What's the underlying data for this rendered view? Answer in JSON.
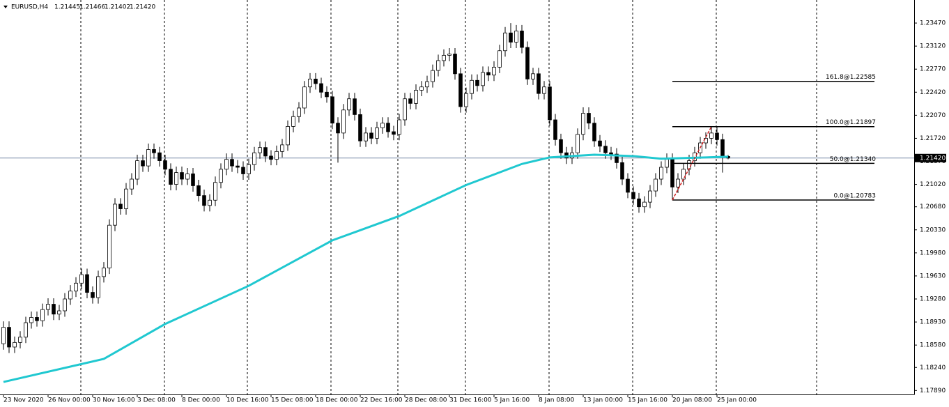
{
  "chart_data": {
    "type": "candlestick",
    "symbol": "EURUSD,H4",
    "header_values": [
      "1.21445",
      "1.21466",
      "1.21402",
      "1.21420"
    ],
    "open": [
      1.186,
      1.1885,
      1.1855,
      1.1862,
      1.187,
      1.1892,
      1.19,
      1.1895,
      1.1912,
      1.192,
      1.1905,
      1.191,
      1.1928,
      1.194,
      1.1952,
      1.1965,
      1.1938,
      1.193,
      1.1962,
      1.1975,
      1.204,
      1.2072,
      1.2065,
      1.2095,
      1.211,
      1.2138,
      1.213,
      1.2155,
      1.215,
      1.2138,
      1.2125,
      1.2102,
      1.212,
      1.211,
      1.2118,
      1.21,
      1.2085,
      1.207,
      1.2078,
      1.2105,
      1.2125,
      1.214,
      1.213,
      1.2128,
      1.2118,
      1.2132,
      1.215,
      1.2158,
      1.2145,
      1.214,
      1.2152,
      1.2162,
      1.219,
      1.2205,
      1.2218,
      1.225,
      1.2262,
      1.2255,
      1.2242,
      1.2235,
      1.2195,
      1.218,
      1.2215,
      1.2232,
      1.2208,
      1.2168,
      1.218,
      1.2172,
      1.2188,
      1.2195,
      1.2182,
      1.2178,
      1.22,
      1.2232,
      1.2225,
      1.2245,
      1.225,
      1.2258,
      1.2275,
      1.229,
      1.2298,
      1.23,
      1.227,
      1.222,
      1.224,
      1.226,
      1.2252,
      1.2272,
      1.2268,
      1.228,
      1.2305,
      1.2332,
      1.2318,
      1.2335,
      1.231,
      1.2262,
      1.227,
      1.224,
      1.225,
      1.22,
      1.217,
      1.215,
      1.2142,
      1.215,
      1.2178,
      1.221,
      1.2195,
      1.2168,
      1.216,
      1.215,
      1.2148,
      1.2135,
      1.211,
      1.209,
      1.208,
      1.2068,
      1.2075,
      1.2092,
      1.211,
      1.2128,
      1.214,
      1.2098,
      1.211,
      1.2125,
      1.2138,
      1.215,
      1.2165,
      1.2172,
      1.218,
      1.217,
      1.21445
    ],
    "high": [
      1.1894,
      1.1894,
      1.1871,
      1.1879,
      1.1901,
      1.1909,
      1.1909,
      1.1921,
      1.1929,
      1.1929,
      1.1919,
      1.1937,
      1.1949,
      1.1961,
      1.1974,
      1.1974,
      1.1947,
      1.1971,
      1.1984,
      1.2049,
      1.2081,
      1.2081,
      1.2104,
      1.2119,
      1.2147,
      1.2147,
      1.2164,
      1.2164,
      1.2159,
      1.2147,
      1.2134,
      1.2129,
      1.2129,
      1.2127,
      1.2127,
      1.2109,
      1.2094,
      1.2087,
      1.2114,
      1.2134,
      1.2149,
      1.2149,
      1.2139,
      1.2137,
      1.2141,
      1.2159,
      1.2167,
      1.2167,
      1.2154,
      1.2161,
      1.2171,
      1.2199,
      1.2214,
      1.2227,
      1.2259,
      1.2271,
      1.2271,
      1.2264,
      1.2251,
      1.2244,
      1.2204,
      1.2224,
      1.2241,
      1.2241,
      1.2217,
      1.2189,
      1.2189,
      1.2197,
      1.2204,
      1.2204,
      1.2191,
      1.2209,
      1.2241,
      1.2241,
      1.2254,
      1.2259,
      1.2267,
      1.2284,
      1.2299,
      1.2307,
      1.2309,
      1.2309,
      1.2279,
      1.2249,
      1.2269,
      1.2269,
      1.2281,
      1.2281,
      1.2289,
      1.2314,
      1.2341,
      1.2347,
      1.2344,
      1.2344,
      1.2319,
      1.2279,
      1.2279,
      1.2259,
      1.2259,
      1.2209,
      1.2179,
      1.2159,
      1.2159,
      1.2187,
      1.2219,
      1.2219,
      1.2204,
      1.2177,
      1.2169,
      1.2159,
      1.2157,
      1.2144,
      1.2119,
      1.2099,
      1.2089,
      1.2084,
      1.2101,
      1.2119,
      1.2137,
      1.2149,
      1.2149,
      1.2119,
      1.2134,
      1.2147,
      1.2159,
      1.2174,
      1.2181,
      1.219,
      1.2189,
      1.2179,
      1.21466
    ],
    "low": [
      1.1851,
      1.1846,
      1.1846,
      1.1853,
      1.1861,
      1.1883,
      1.1886,
      1.1886,
      1.1903,
      1.1896,
      1.1896,
      1.1901,
      1.1919,
      1.1931,
      1.1943,
      1.1929,
      1.1921,
      1.1921,
      1.1953,
      1.1966,
      1.2031,
      1.2056,
      1.2056,
      1.2086,
      1.2101,
      1.2121,
      1.2121,
      1.2141,
      1.2129,
      1.2116,
      1.2093,
      1.2093,
      1.2101,
      1.2101,
      1.2091,
      1.2076,
      1.2061,
      1.2061,
      1.2069,
      1.2096,
      1.2116,
      1.2121,
      1.2119,
      1.2109,
      1.2109,
      1.2123,
      1.2141,
      1.2136,
      1.2131,
      1.2131,
      1.2143,
      1.2153,
      1.2181,
      1.2196,
      1.2209,
      1.2241,
      1.2246,
      1.2233,
      1.2226,
      1.2186,
      1.2135,
      1.2171,
      1.2206,
      1.2199,
      1.2159,
      1.2159,
      1.2163,
      1.2163,
      1.2179,
      1.2173,
      1.2169,
      1.2169,
      1.2191,
      1.2216,
      1.2216,
      1.2236,
      1.2241,
      1.2249,
      1.2266,
      1.2281,
      1.2289,
      1.2261,
      1.2211,
      1.2211,
      1.2231,
      1.2243,
      1.2243,
      1.2259,
      1.2259,
      1.2271,
      1.2296,
      1.2309,
      1.2309,
      1.2301,
      1.2253,
      1.2253,
      1.2231,
      1.2231,
      1.2191,
      1.2161,
      1.2141,
      1.2133,
      1.2133,
      1.2141,
      1.2169,
      1.2186,
      1.2159,
      1.2151,
      1.2141,
      1.2139,
      1.2126,
      1.2101,
      1.2081,
      1.2071,
      1.2059,
      1.2059,
      1.2066,
      1.2083,
      1.2101,
      1.2119,
      1.2078,
      1.2089,
      1.2101,
      1.2116,
      1.2129,
      1.2141,
      1.2156,
      1.2163,
      1.2161,
      1.212,
      1.21402
    ],
    "close": [
      1.1885,
      1.1855,
      1.1862,
      1.187,
      1.1892,
      1.19,
      1.1895,
      1.1912,
      1.192,
      1.1905,
      1.191,
      1.1928,
      1.194,
      1.1952,
      1.1965,
      1.1938,
      1.193,
      1.1962,
      1.1975,
      1.204,
      1.2072,
      1.2065,
      1.2095,
      1.211,
      1.2138,
      1.213,
      1.2155,
      1.215,
      1.2138,
      1.2125,
      1.2102,
      1.212,
      1.211,
      1.2118,
      1.21,
      1.2085,
      1.207,
      1.2078,
      1.2105,
      1.2125,
      1.214,
      1.213,
      1.2128,
      1.2118,
      1.2132,
      1.215,
      1.2158,
      1.2145,
      1.214,
      1.2152,
      1.2162,
      1.219,
      1.2205,
      1.2218,
      1.225,
      1.2262,
      1.2255,
      1.2242,
      1.2235,
      1.2195,
      1.218,
      1.2215,
      1.2232,
      1.2208,
      1.2168,
      1.218,
      1.2172,
      1.2188,
      1.2195,
      1.2182,
      1.2178,
      1.22,
      1.2232,
      1.2225,
      1.2245,
      1.225,
      1.2258,
      1.2275,
      1.229,
      1.2298,
      1.23,
      1.227,
      1.222,
      1.224,
      1.226,
      1.2252,
      1.2272,
      1.2268,
      1.228,
      1.2305,
      1.2332,
      1.2318,
      1.2335,
      1.231,
      1.2262,
      1.227,
      1.224,
      1.225,
      1.22,
      1.217,
      1.215,
      1.2142,
      1.215,
      1.2178,
      1.221,
      1.2195,
      1.2168,
      1.216,
      1.215,
      1.2148,
      1.2135,
      1.211,
      1.209,
      1.208,
      1.2068,
      1.2075,
      1.2092,
      1.211,
      1.2128,
      1.214,
      1.2098,
      1.211,
      1.2125,
      1.2138,
      1.215,
      1.2165,
      1.2172,
      1.218,
      1.217,
      1.21445,
      1.2142
    ],
    "ma": {
      "color": "#20c8d0",
      "x": [
        0,
        18,
        29,
        44,
        59,
        71,
        83,
        93,
        98,
        106,
        113,
        118,
        130
      ],
      "values": [
        1.1802,
        1.1837,
        1.189,
        1.1948,
        1.2017,
        1.2054,
        1.2101,
        1.2133,
        1.2143,
        1.2147,
        1.2145,
        1.2141,
        1.2144
      ]
    },
    "bid": {
      "value": 1.2142,
      "label": "1.21420"
    },
    "fibo": {
      "anchor_x": [
        120,
        127
      ],
      "line_color": "#d02020",
      "levels": [
        {
          "value": 1.22585,
          "label": "161.8@1.22585"
        },
        {
          "value": 1.21897,
          "label": "100.0@1.21897"
        },
        {
          "value": 1.2134,
          "label": "50.0@1.21340"
        },
        {
          "value": 1.20783,
          "label": "0.0@1.20783"
        }
      ]
    },
    "xlim": [
      -0.625,
      163.375
    ],
    "xticks": [
      {
        "value": 0,
        "label": "23 Nov 2020"
      },
      {
        "value": 8,
        "label": "26 Nov 00:00"
      },
      {
        "value": 16,
        "label": "30 Nov 16:00"
      },
      {
        "value": 24,
        "label": "3 Dec 08:00"
      },
      {
        "value": 32,
        "label": "8 Dec 00:00"
      },
      {
        "value": 40,
        "label": "10 Dec 16:00"
      },
      {
        "value": 48,
        "label": "15 Dec 08:00"
      },
      {
        "value": 56,
        "label": "18 Dec 00:00"
      },
      {
        "value": 64,
        "label": "22 Dec 16:00"
      },
      {
        "value": 72,
        "label": "28 Dec 08:00"
      },
      {
        "value": 80,
        "label": "31 Dec 16:00"
      },
      {
        "value": 88,
        "label": "5 Jan 16:00"
      },
      {
        "value": 96,
        "label": "8 Jan 08:00"
      },
      {
        "value": 104,
        "label": "13 Jan 00:00"
      },
      {
        "value": 112,
        "label": "15 Jan 16:00"
      },
      {
        "value": 120,
        "label": "20 Jan 08:00"
      },
      {
        "value": 128,
        "label": "25 Jan 00:00"
      }
    ],
    "ylim": [
      1.1783,
      1.2382
    ],
    "yticks": [
      {
        "value": 1.2347,
        "label": "1.23470"
      },
      {
        "value": 1.2312,
        "label": "1.23120"
      },
      {
        "value": 1.2277,
        "label": "1.22770"
      },
      {
        "value": 1.2242,
        "label": "1.22420"
      },
      {
        "value": 1.2207,
        "label": "1.22070"
      },
      {
        "value": 1.2172,
        "label": "1.21720"
      },
      {
        "value": 1.2137,
        "label": "1.21370"
      },
      {
        "value": 1.2102,
        "label": "1.21020"
      },
      {
        "value": 1.2068,
        "label": "1.20680"
      },
      {
        "value": 1.2033,
        "label": "1.20330"
      },
      {
        "value": 1.1998,
        "label": "1.19980"
      },
      {
        "value": 1.1963,
        "label": "1.19630"
      },
      {
        "value": 1.1928,
        "label": "1.19280"
      },
      {
        "value": 1.1893,
        "label": "1.18930"
      },
      {
        "value": 1.1858,
        "label": "1.18580"
      },
      {
        "value": 1.1824,
        "label": "1.18240"
      },
      {
        "value": 1.1789,
        "label": "1.17890"
      }
    ]
  }
}
